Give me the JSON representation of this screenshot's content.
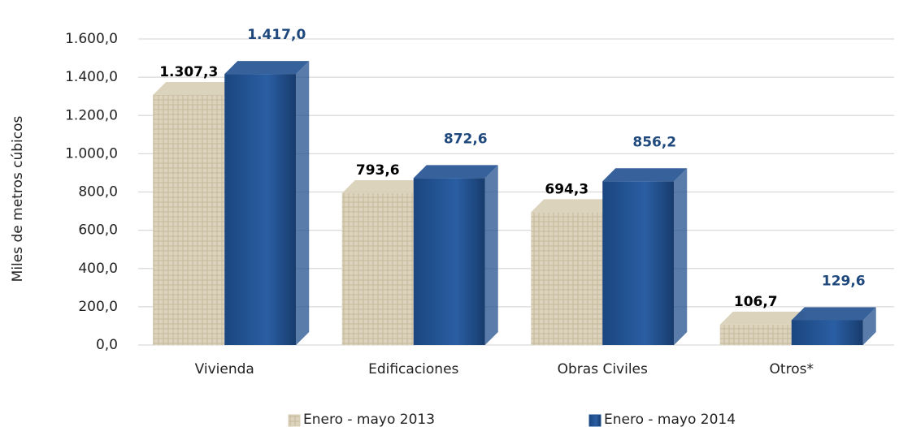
{
  "chart_data": {
    "type": "bar",
    "y_axis_label": "Miles de metros cúbicos",
    "categories": [
      "Vivienda",
      "Edificaciones",
      "Obras Civiles",
      "Otros*"
    ],
    "series": [
      {
        "name": "Enero - mayo 2013",
        "color": "#d8ceb6",
        "label_color": "#000000",
        "values": [
          1307.3,
          793.6,
          694.3,
          106.7
        ],
        "value_labels": [
          "1.307,3",
          "793,6",
          "694,3",
          "106,7"
        ]
      },
      {
        "name": "Enero - mayo 2014",
        "color": "#21508f",
        "label_color": "#1f497d",
        "values": [
          1417.0,
          872.6,
          856.2,
          129.6
        ],
        "value_labels": [
          "1.417,0",
          "872,6",
          "856,2",
          "129,6"
        ]
      }
    ],
    "ylim": [
      0,
      1600
    ],
    "yticks": [
      {
        "value": 0,
        "label": "0,0"
      },
      {
        "value": 200,
        "label": "200,0"
      },
      {
        "value": 400,
        "label": "400,0"
      },
      {
        "value": 600,
        "label": "600,0"
      },
      {
        "value": 800,
        "label": "800,0"
      },
      {
        "value": 1000,
        "label": "1.000,0"
      },
      {
        "value": 1200,
        "label": "1.200,0"
      },
      {
        "value": 1400,
        "label": "1.400,0"
      },
      {
        "value": 1600,
        "label": "1.600,0"
      }
    ],
    "grid": true,
    "legend": "bottom"
  }
}
